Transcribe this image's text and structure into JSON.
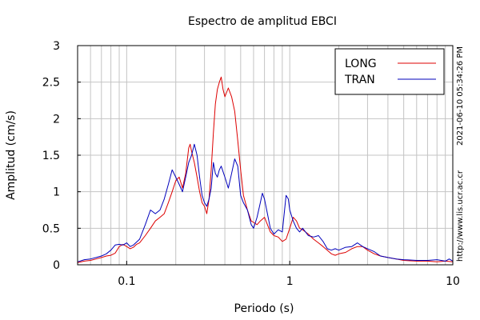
{
  "chart_data": {
    "type": "line",
    "title": "Espectro de amplitud EBCI",
    "xlabel": "Periodo (s)",
    "ylabel": "Amplitud (cm/s)",
    "x_scale": "log",
    "xlim": [
      0.05,
      10
    ],
    "ylim": [
      0,
      3
    ],
    "x_ticks": [
      {
        "value": 0.1,
        "label": "0.1"
      },
      {
        "value": 1,
        "label": "1"
      },
      {
        "value": 10,
        "label": "10"
      }
    ],
    "y_ticks": [
      {
        "value": 0,
        "label": "0"
      },
      {
        "value": 0.5,
        "label": "0.5"
      },
      {
        "value": 1,
        "label": "1"
      },
      {
        "value": 1.5,
        "label": "1.5"
      },
      {
        "value": 2,
        "label": "2"
      },
      {
        "value": 2.5,
        "label": "2.5"
      },
      {
        "value": 3,
        "label": "3"
      }
    ],
    "grid": true,
    "legend_position": "top-right",
    "side_text": "2021-06-10 05:34:26 PM",
    "url_text": "http://www.lis.ucr.ac.cr",
    "series": [
      {
        "name": "LONG",
        "color": "#dd0000",
        "points": [
          [
            0.05,
            0.03
          ],
          [
            0.055,
            0.05
          ],
          [
            0.06,
            0.06
          ],
          [
            0.065,
            0.08
          ],
          [
            0.07,
            0.1
          ],
          [
            0.075,
            0.12
          ],
          [
            0.08,
            0.13
          ],
          [
            0.085,
            0.16
          ],
          [
            0.09,
            0.25
          ],
          [
            0.095,
            0.28
          ],
          [
            0.1,
            0.25
          ],
          [
            0.105,
            0.22
          ],
          [
            0.11,
            0.24
          ],
          [
            0.115,
            0.28
          ],
          [
            0.12,
            0.3
          ],
          [
            0.13,
            0.4
          ],
          [
            0.14,
            0.5
          ],
          [
            0.15,
            0.6
          ],
          [
            0.16,
            0.65
          ],
          [
            0.17,
            0.7
          ],
          [
            0.18,
            0.85
          ],
          [
            0.19,
            1.0
          ],
          [
            0.2,
            1.15
          ],
          [
            0.21,
            1.2
          ],
          [
            0.22,
            1.05
          ],
          [
            0.23,
            1.25
          ],
          [
            0.24,
            1.6
          ],
          [
            0.245,
            1.65
          ],
          [
            0.25,
            1.55
          ],
          [
            0.26,
            1.4
          ],
          [
            0.27,
            1.2
          ],
          [
            0.28,
            1.0
          ],
          [
            0.29,
            0.85
          ],
          [
            0.3,
            0.8
          ],
          [
            0.31,
            0.7
          ],
          [
            0.32,
            0.9
          ],
          [
            0.33,
            1.3
          ],
          [
            0.34,
            1.8
          ],
          [
            0.35,
            2.2
          ],
          [
            0.36,
            2.4
          ],
          [
            0.37,
            2.5
          ],
          [
            0.38,
            2.57
          ],
          [
            0.39,
            2.4
          ],
          [
            0.4,
            2.3
          ],
          [
            0.42,
            2.42
          ],
          [
            0.44,
            2.3
          ],
          [
            0.46,
            2.1
          ],
          [
            0.48,
            1.7
          ],
          [
            0.5,
            1.3
          ],
          [
            0.52,
            0.95
          ],
          [
            0.55,
            0.75
          ],
          [
            0.58,
            0.6
          ],
          [
            0.6,
            0.58
          ],
          [
            0.63,
            0.55
          ],
          [
            0.66,
            0.6
          ],
          [
            0.7,
            0.65
          ],
          [
            0.73,
            0.55
          ],
          [
            0.76,
            0.45
          ],
          [
            0.8,
            0.4
          ],
          [
            0.85,
            0.38
          ],
          [
            0.9,
            0.32
          ],
          [
            0.95,
            0.35
          ],
          [
            1.0,
            0.5
          ],
          [
            1.05,
            0.65
          ],
          [
            1.1,
            0.6
          ],
          [
            1.15,
            0.5
          ],
          [
            1.2,
            0.48
          ],
          [
            1.3,
            0.42
          ],
          [
            1.4,
            0.35
          ],
          [
            1.5,
            0.3
          ],
          [
            1.6,
            0.25
          ],
          [
            1.7,
            0.2
          ],
          [
            1.8,
            0.15
          ],
          [
            1.9,
            0.13
          ],
          [
            2.0,
            0.15
          ],
          [
            2.2,
            0.17
          ],
          [
            2.4,
            0.22
          ],
          [
            2.6,
            0.25
          ],
          [
            2.8,
            0.25
          ],
          [
            3.0,
            0.2
          ],
          [
            3.3,
            0.15
          ],
          [
            3.6,
            0.12
          ],
          [
            4.0,
            0.1
          ],
          [
            4.5,
            0.08
          ],
          [
            5.0,
            0.06
          ],
          [
            6.0,
            0.05
          ],
          [
            7.0,
            0.05
          ],
          [
            8.0,
            0.04
          ],
          [
            9.0,
            0.05
          ],
          [
            10.0,
            0.04
          ]
        ]
      },
      {
        "name": "TRAN",
        "color": "#0000bb",
        "points": [
          [
            0.05,
            0.04
          ],
          [
            0.055,
            0.07
          ],
          [
            0.06,
            0.08
          ],
          [
            0.065,
            0.1
          ],
          [
            0.07,
            0.12
          ],
          [
            0.075,
            0.15
          ],
          [
            0.08,
            0.2
          ],
          [
            0.085,
            0.27
          ],
          [
            0.09,
            0.28
          ],
          [
            0.095,
            0.27
          ],
          [
            0.1,
            0.3
          ],
          [
            0.105,
            0.25
          ],
          [
            0.11,
            0.27
          ],
          [
            0.12,
            0.35
          ],
          [
            0.13,
            0.55
          ],
          [
            0.14,
            0.75
          ],
          [
            0.15,
            0.7
          ],
          [
            0.16,
            0.75
          ],
          [
            0.17,
            0.9
          ],
          [
            0.18,
            1.1
          ],
          [
            0.19,
            1.3
          ],
          [
            0.2,
            1.2
          ],
          [
            0.21,
            1.1
          ],
          [
            0.22,
            1.0
          ],
          [
            0.23,
            1.2
          ],
          [
            0.24,
            1.4
          ],
          [
            0.25,
            1.5
          ],
          [
            0.26,
            1.65
          ],
          [
            0.27,
            1.5
          ],
          [
            0.28,
            1.2
          ],
          [
            0.29,
            0.95
          ],
          [
            0.3,
            0.85
          ],
          [
            0.31,
            0.8
          ],
          [
            0.32,
            0.9
          ],
          [
            0.33,
            1.05
          ],
          [
            0.34,
            1.4
          ],
          [
            0.35,
            1.25
          ],
          [
            0.36,
            1.2
          ],
          [
            0.37,
            1.3
          ],
          [
            0.38,
            1.35
          ],
          [
            0.4,
            1.2
          ],
          [
            0.42,
            1.05
          ],
          [
            0.44,
            1.25
          ],
          [
            0.46,
            1.45
          ],
          [
            0.48,
            1.35
          ],
          [
            0.5,
            0.95
          ],
          [
            0.52,
            0.85
          ],
          [
            0.55,
            0.75
          ],
          [
            0.58,
            0.55
          ],
          [
            0.6,
            0.5
          ],
          [
            0.63,
            0.65
          ],
          [
            0.66,
            0.85
          ],
          [
            0.68,
            0.98
          ],
          [
            0.7,
            0.9
          ],
          [
            0.73,
            0.7
          ],
          [
            0.76,
            0.5
          ],
          [
            0.8,
            0.42
          ],
          [
            0.85,
            0.48
          ],
          [
            0.9,
            0.45
          ],
          [
            0.95,
            0.95
          ],
          [
            0.98,
            0.9
          ],
          [
            1.0,
            0.75
          ],
          [
            1.05,
            0.6
          ],
          [
            1.1,
            0.5
          ],
          [
            1.15,
            0.45
          ],
          [
            1.2,
            0.5
          ],
          [
            1.3,
            0.4
          ],
          [
            1.4,
            0.38
          ],
          [
            1.5,
            0.4
          ],
          [
            1.6,
            0.32
          ],
          [
            1.7,
            0.22
          ],
          [
            1.8,
            0.2
          ],
          [
            1.9,
            0.22
          ],
          [
            2.0,
            0.2
          ],
          [
            2.2,
            0.24
          ],
          [
            2.4,
            0.25
          ],
          [
            2.6,
            0.3
          ],
          [
            2.8,
            0.25
          ],
          [
            3.0,
            0.22
          ],
          [
            3.3,
            0.18
          ],
          [
            3.6,
            0.12
          ],
          [
            4.0,
            0.1
          ],
          [
            4.5,
            0.08
          ],
          [
            5.0,
            0.07
          ],
          [
            6.0,
            0.06
          ],
          [
            7.0,
            0.06
          ],
          [
            8.0,
            0.07
          ],
          [
            9.0,
            0.05
          ],
          [
            9.5,
            0.08
          ],
          [
            10.0,
            0.05
          ]
        ]
      }
    ]
  }
}
